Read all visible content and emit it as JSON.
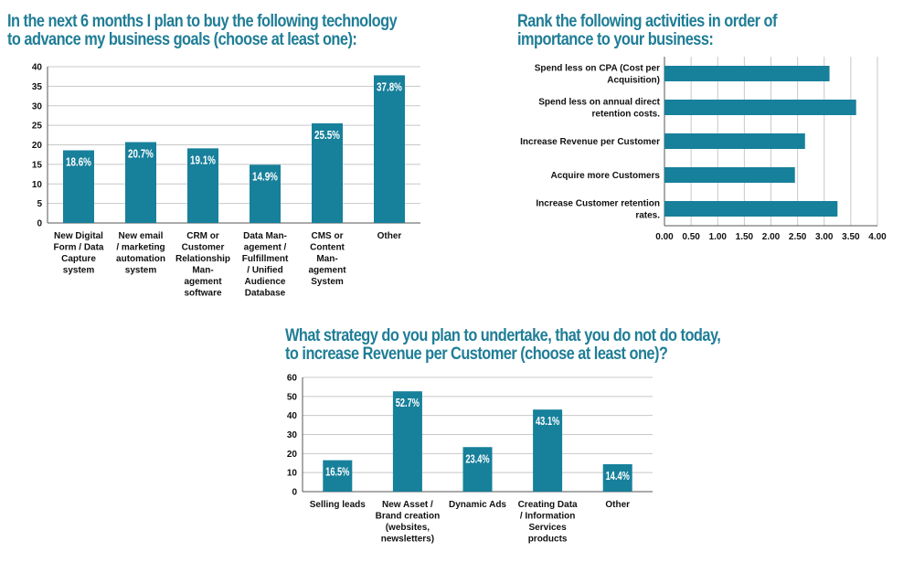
{
  "colors": {
    "bar": "#17809b",
    "title": "#1f7d96",
    "grid": "#c8c8c8",
    "axis": "#555555"
  },
  "chart_data": [
    {
      "type": "bar",
      "title_lines": [
        "In the next 6 months I plan to buy the following technology",
        "to advance my business goals (choose at least one):"
      ],
      "categories": [
        [
          "New Digital",
          "Form / Data",
          "Capture",
          "system"
        ],
        [
          "New email",
          "/ marketing",
          "automation",
          "system"
        ],
        [
          "CRM or",
          "Customer",
          "Relationship",
          "Man-",
          "agement",
          "software"
        ],
        [
          "Data Man-",
          "agement /",
          "Fulfillment",
          "/ Unified",
          "Audience",
          "Database"
        ],
        [
          "CMS or",
          "Content",
          "Man-",
          "agement",
          "System"
        ],
        [
          "Other"
        ]
      ],
      "values": [
        18.6,
        20.7,
        19.1,
        14.9,
        25.5,
        37.8
      ],
      "data_labels": [
        "18.6%",
        "20.7%",
        "19.1%",
        "14.9%",
        "25.5%",
        "37.8%"
      ],
      "ylim": [
        0,
        40
      ],
      "yticks": [
        0,
        5,
        10,
        15,
        20,
        25,
        30,
        35,
        40
      ],
      "grid": true
    },
    {
      "type": "bar",
      "orientation": "horizontal",
      "title_lines": [
        "Rank the following activities in order of",
        "importance to your business:"
      ],
      "categories": [
        [
          "Spend less on CPA (Cost per",
          "Acquisition)"
        ],
        [
          "Spend less on annual direct",
          "retention costs."
        ],
        [
          "Increase Revenue per Customer"
        ],
        [
          "Acquire more Customers"
        ],
        [
          "Increase Customer retention",
          "rates."
        ]
      ],
      "values": [
        3.1,
        3.6,
        2.64,
        2.45,
        3.25
      ],
      "xlim": [
        0,
        4
      ],
      "xticks": [
        "0.00",
        "0.50",
        "1.00",
        "1.50",
        "2.00",
        "2.50",
        "3.00",
        "3.50",
        "4.00"
      ],
      "grid": true
    },
    {
      "type": "bar",
      "title_lines": [
        "What strategy do you plan to undertake, that you do not do today,",
        "to increase Revenue per Customer (choose at least one)?"
      ],
      "categories": [
        [
          "Selling leads"
        ],
        [
          "New Asset /",
          "Brand creation",
          "(websites,",
          "newsletters)"
        ],
        [
          "Dynamic Ads"
        ],
        [
          "Creating Data",
          "/ Information",
          "Services",
          "products"
        ],
        [
          "Other"
        ]
      ],
      "values": [
        16.5,
        52.7,
        23.4,
        43.1,
        14.4
      ],
      "data_labels": [
        "16.5%",
        "52.7%",
        "23.4%",
        "43.1%",
        "14.4%"
      ],
      "ylim": [
        0,
        60
      ],
      "yticks": [
        0,
        10,
        20,
        30,
        40,
        50,
        60
      ],
      "grid": true
    }
  ]
}
